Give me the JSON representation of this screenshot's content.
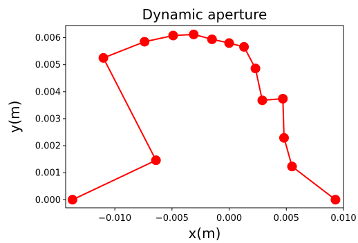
{
  "chart_data": {
    "type": "line",
    "title": "Dynamic aperture",
    "xlabel": "x(m)",
    "ylabel": "y(m)",
    "xlim": [
      -0.0143,
      0.01
    ],
    "ylim": [
      -0.0003,
      0.00645
    ],
    "x_ticks": [
      -0.01,
      -0.005,
      0.0,
      0.005,
      0.01
    ],
    "x_tick_labels": [
      "−0.010",
      "−0.005",
      "0.000",
      "0.005",
      "0.010"
    ],
    "y_ticks": [
      0.0,
      0.001,
      0.002,
      0.003,
      0.004,
      0.005,
      0.006
    ],
    "y_tick_labels": [
      "0.000",
      "0.001",
      "0.002",
      "0.003",
      "0.004",
      "0.005",
      "0.006"
    ],
    "grid": false,
    "color": "#ff0000",
    "marker": "circle",
    "series": [
      {
        "x": [
          -0.0137,
          -0.0064,
          -0.011,
          -0.0074,
          -0.0049,
          -0.0031,
          -0.0015,
          0.0,
          0.0013,
          0.0023,
          0.0029,
          0.0047,
          0.0048,
          0.0055,
          0.0093
        ],
        "y": [
          0.0,
          0.00146,
          0.00525,
          0.00585,
          0.00608,
          0.00612,
          0.00594,
          0.0058,
          0.00566,
          0.00486,
          0.00368,
          0.00374,
          0.00229,
          0.00123,
          0.0
        ]
      }
    ]
  }
}
